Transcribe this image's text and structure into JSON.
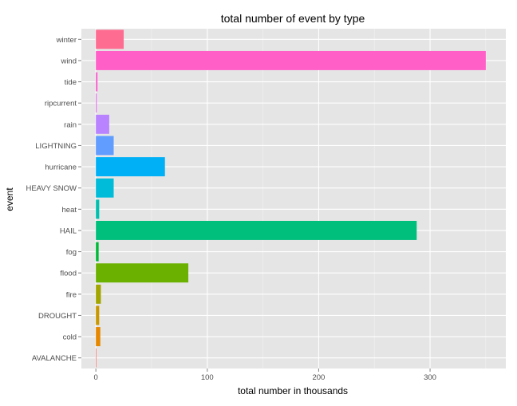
{
  "chart_data": {
    "type": "bar",
    "orientation": "horizontal",
    "title": "total number of event by type",
    "xlabel": "total number in thousands",
    "ylabel": "event",
    "xlim": [
      -13,
      368
    ],
    "xticks": [
      0,
      100,
      200,
      300
    ],
    "grid": true,
    "legend": "none",
    "categories": [
      "AVALANCHE",
      "cold",
      "DROUGHT",
      "fire",
      "flood",
      "fog",
      "HAIL",
      "heat",
      "HEAVY SNOW",
      "hurricane",
      "LIGHTNING",
      "rain",
      "ripcurrent",
      "tide",
      "wind",
      "winter"
    ],
    "values": [
      0.5,
      4,
      3,
      4.5,
      83,
      2.5,
      288,
      3,
      16,
      62,
      16,
      12,
      0.8,
      1.5,
      350,
      25
    ],
    "colors": [
      "#F8766D",
      "#E58700",
      "#C99800",
      "#A3A500",
      "#6BB100",
      "#00BA38",
      "#00BF7D",
      "#00C0AF",
      "#00BCD8",
      "#00B0F6",
      "#619CFF",
      "#B983FF",
      "#E76BF3",
      "#FD61D1",
      "#FF5FC7",
      "#FF6C91"
    ],
    "panel_background": "#E5E5E5",
    "grid_color": "#FFFFFF"
  }
}
